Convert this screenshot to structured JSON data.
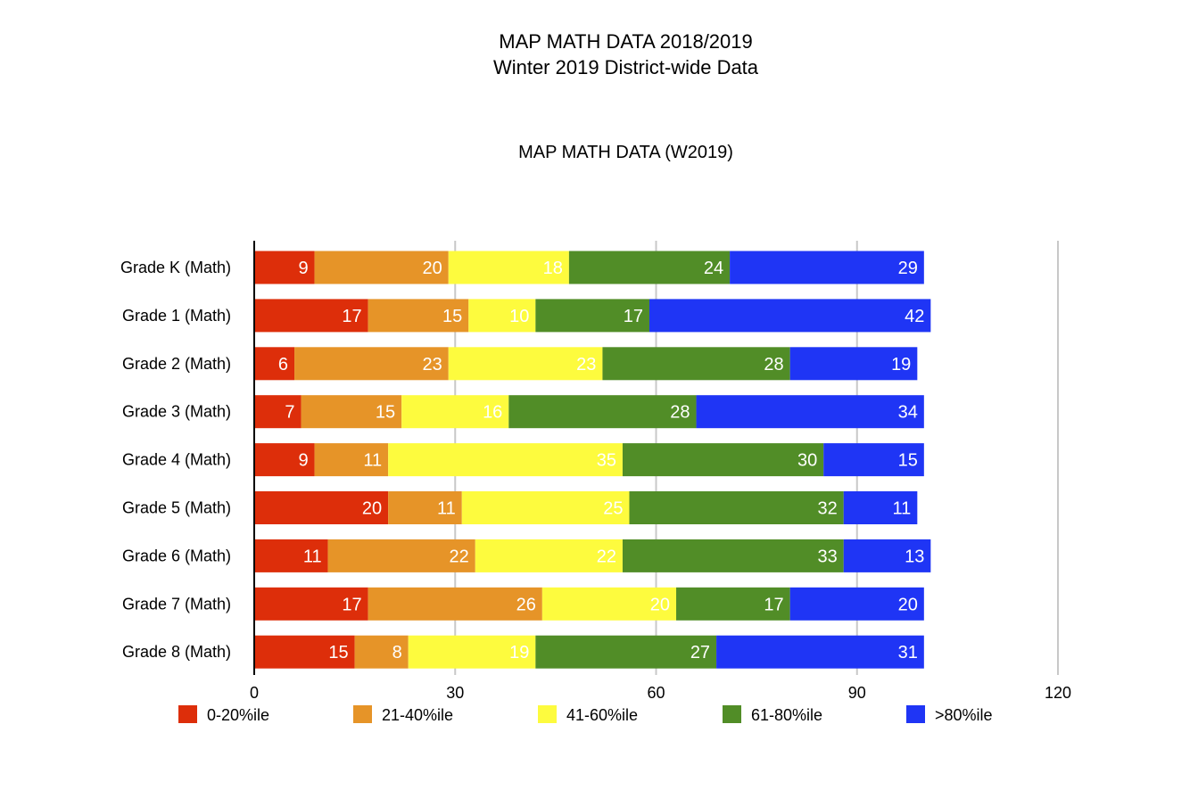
{
  "header": {
    "title": "MAP MATH DATA 2018/2019",
    "subtitle": "Winter 2019 District-wide Data"
  },
  "chart_data": {
    "type": "bar",
    "orientation": "horizontal",
    "stacked": true,
    "title": "MAP MATH DATA (W2019)",
    "categories": [
      "Grade K (Math)",
      "Grade 1 (Math)",
      "Grade 2 (Math)",
      "Grade 3 (Math)",
      "Grade 4 (Math)",
      "Grade 5 (Math)",
      "Grade 6 (Math)",
      "Grade 7 (Math)",
      "Grade 8 (Math)"
    ],
    "series": [
      {
        "name": "0-20%ile",
        "color": "#dd2e0a",
        "values": [
          9,
          17,
          6,
          7,
          9,
          20,
          11,
          17,
          15
        ]
      },
      {
        "name": "21-40%ile",
        "color": "#e69428",
        "values": [
          20,
          15,
          23,
          15,
          11,
          11,
          22,
          26,
          8
        ]
      },
      {
        "name": "41-60%ile",
        "color": "#fdfb3e",
        "values": [
          18,
          10,
          23,
          16,
          35,
          25,
          22,
          20,
          19
        ]
      },
      {
        "name": "61-80%ile",
        "color": "#518d27",
        "values": [
          24,
          17,
          28,
          28,
          30,
          32,
          33,
          17,
          27
        ]
      },
      {
        "name": ">80%ile",
        "color": "#1f35f5",
        "values": [
          29,
          42,
          19,
          34,
          15,
          11,
          13,
          20,
          31
        ]
      }
    ],
    "xlim": [
      0,
      120
    ],
    "xticks": [
      0,
      30,
      60,
      90,
      120
    ],
    "xlabel": "",
    "ylabel": "",
    "grid": true,
    "legend": "bottom",
    "data_labels": true
  }
}
